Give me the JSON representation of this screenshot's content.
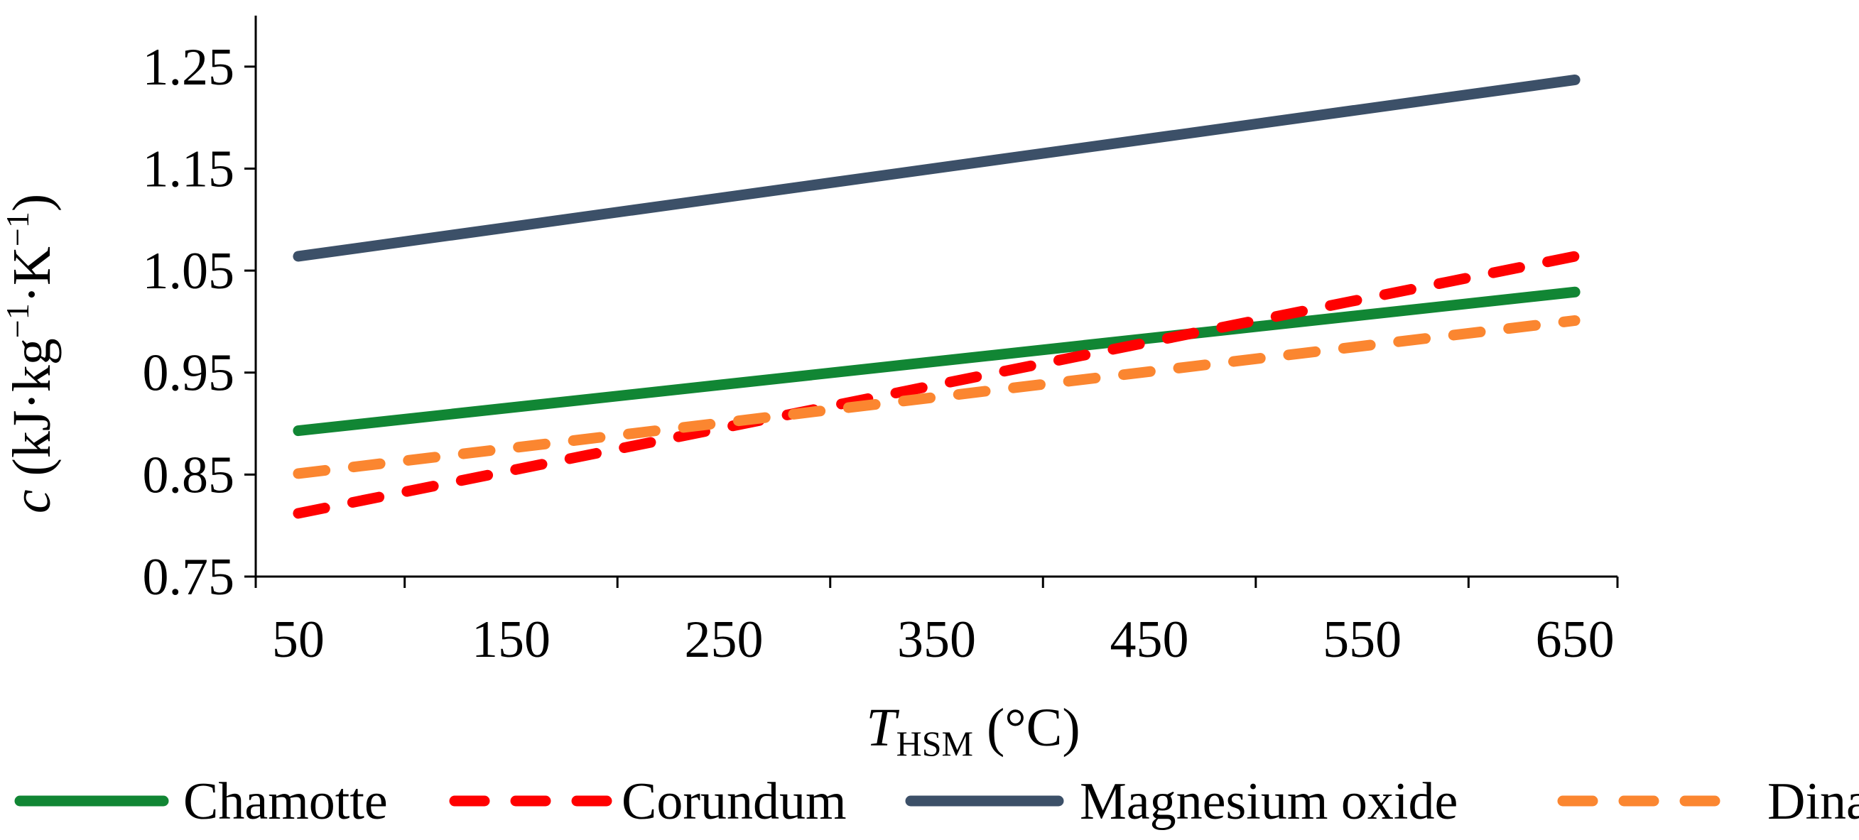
{
  "chart_data": {
    "type": "line",
    "title": "",
    "xlabel": {
      "main": "T",
      "subscript": "HSM",
      "unit": " (°C)"
    },
    "ylabel": {
      "variable": "c",
      "unit_prefix": " (kJ·kg",
      "exp1": "−1",
      "unit_mid": "·K",
      "exp2": "−1",
      "unit_suffix": ")"
    },
    "xlim": [
      30,
      670
    ],
    "ylim": [
      0.75,
      1.3
    ],
    "xticks_major": [
      50,
      150,
      250,
      350,
      450,
      550,
      650
    ],
    "xticks_minor": [
      30,
      100,
      200,
      300,
      400,
      500,
      600,
      670
    ],
    "yticks": [
      0.75,
      0.85,
      0.95,
      1.05,
      1.15,
      1.25
    ],
    "ytick_labels": [
      "0.75",
      "0.85",
      "0.95",
      "1.05",
      "1.15",
      "1.25"
    ],
    "xtick_labels": [
      "50",
      "150",
      "250",
      "350",
      "450",
      "550",
      "650"
    ],
    "grid": false,
    "legend_position": "bottom",
    "series": [
      {
        "name": "Chamotte",
        "x": [
          50,
          650
        ],
        "y": [
          0.893,
          1.029
        ],
        "color": "#118634",
        "style": "solid"
      },
      {
        "name": "Corundum",
        "x": [
          50,
          650
        ],
        "y": [
          0.812,
          1.064
        ],
        "color": "#ff0000",
        "style": "dashed"
      },
      {
        "name": "Magnesium oxide",
        "x": [
          50,
          650
        ],
        "y": [
          1.064,
          1.237
        ],
        "color": "#3c5068",
        "style": "solid"
      },
      {
        "name": "Dinas",
        "x": [
          50,
          650
        ],
        "y": [
          0.851,
          1.001
        ],
        "color": "#fb8630",
        "style": "dashed"
      }
    ]
  }
}
